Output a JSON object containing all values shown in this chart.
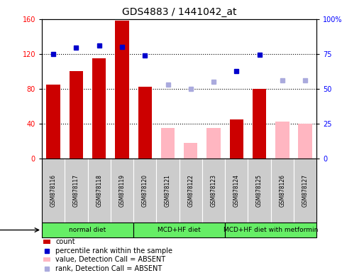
{
  "title": "GDS4883 / 1441042_at",
  "samples": [
    "GSM878116",
    "GSM878117",
    "GSM878118",
    "GSM878119",
    "GSM878120",
    "GSM878121",
    "GSM878122",
    "GSM878123",
    "GSM878124",
    "GSM878125",
    "GSM878126",
    "GSM878127"
  ],
  "count_present": [
    85,
    100,
    115,
    158,
    82,
    null,
    null,
    null,
    45,
    80,
    null,
    null
  ],
  "count_absent": [
    null,
    null,
    null,
    null,
    null,
    35,
    18,
    35,
    null,
    null,
    42,
    40
  ],
  "percentile_present": [
    120,
    127,
    130,
    128,
    118,
    null,
    null,
    null,
    100,
    119,
    null,
    null
  ],
  "percentile_absent": [
    null,
    null,
    null,
    null,
    null,
    85,
    80,
    88,
    null,
    null,
    90,
    90
  ],
  "protocols": [
    {
      "label": "normal diet",
      "start": 0,
      "end": 3
    },
    {
      "label": "MCD+HF diet",
      "start": 4,
      "end": 7
    },
    {
      "label": "MCD+HF diet with metformin",
      "start": 8,
      "end": 11
    }
  ],
  "ylim_left": [
    0,
    160
  ],
  "ylim_right": [
    0,
    100
  ],
  "yticks_left": [
    0,
    40,
    80,
    120,
    160
  ],
  "yticks_right": [
    0,
    25,
    50,
    75,
    100
  ],
  "color_bar_present": "#CC0000",
  "color_bar_absent": "#FFB6C1",
  "color_dot_present": "#0000CC",
  "color_dot_absent": "#AAAADD",
  "proto_color": "#66EE66",
  "sample_box_color": "#CCCCCC",
  "legend_items": [
    {
      "label": "count",
      "color": "#CC0000",
      "type": "bar"
    },
    {
      "label": "percentile rank within the sample",
      "color": "#0000CC",
      "type": "dot"
    },
    {
      "label": "value, Detection Call = ABSENT",
      "color": "#FFB6C1",
      "type": "bar"
    },
    {
      "label": "rank, Detection Call = ABSENT",
      "color": "#AAAADD",
      "type": "dot"
    }
  ]
}
